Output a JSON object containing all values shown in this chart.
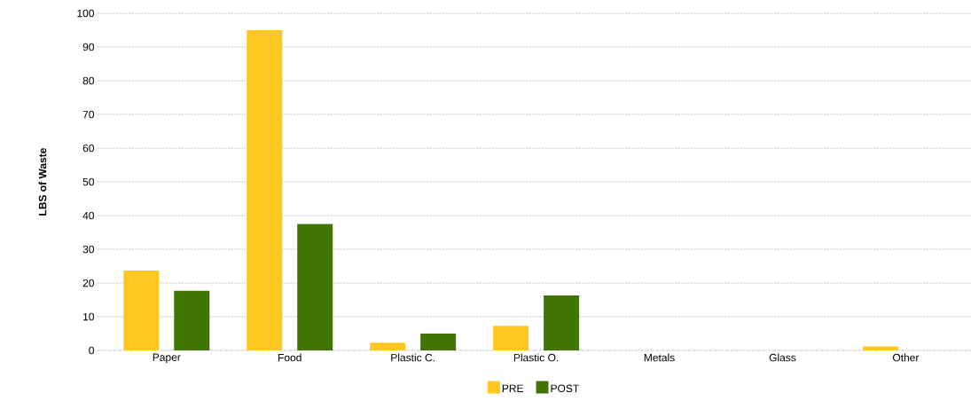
{
  "chart_data": {
    "type": "bar",
    "ylabel": "LBS of Waste",
    "categories": [
      "Paper",
      "Food",
      "Plastic C.",
      "Plastic O.",
      "Metals",
      "Glass",
      "Other"
    ],
    "series": [
      {
        "name": "PRE",
        "color": "#ffc820",
        "values": [
          23.7,
          95,
          2.3,
          7.3,
          0,
          0,
          1.2
        ]
      },
      {
        "name": "POST",
        "color": "#417505",
        "values": [
          17.7,
          37.5,
          5.0,
          16.3,
          0,
          0,
          0
        ]
      }
    ],
    "ylim": [
      0,
      100
    ],
    "yticks": [
      0,
      10,
      20,
      30,
      40,
      50,
      60,
      70,
      80,
      90,
      100
    ],
    "grid": "y",
    "legend": "bottom"
  }
}
